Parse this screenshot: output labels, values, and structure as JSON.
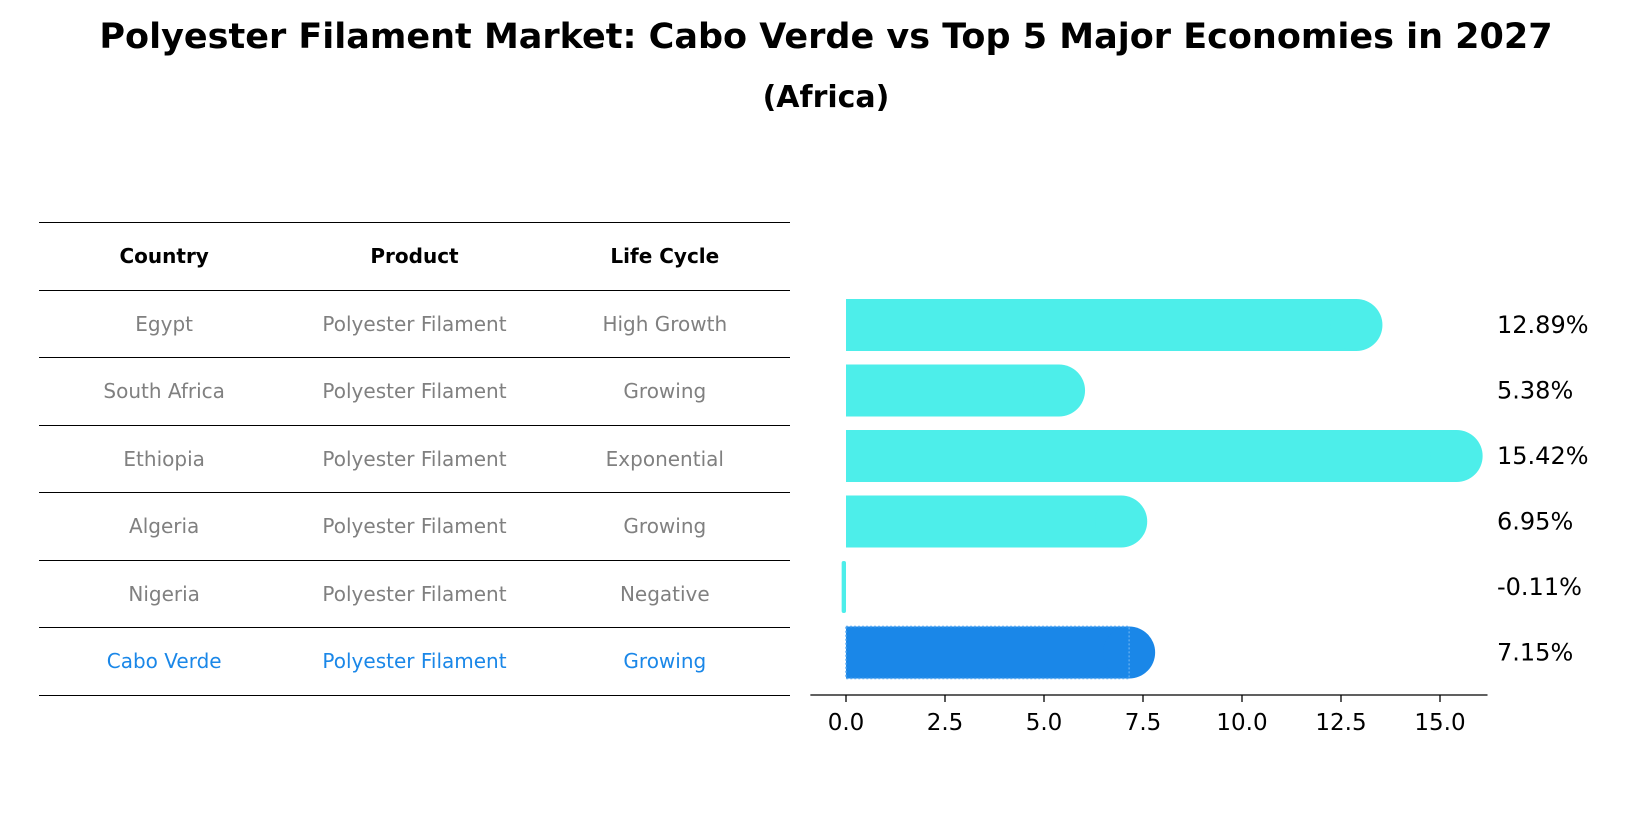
{
  "title": "Polyester Filament Market: Cabo Verde vs Top 5 Major Economies in 2027",
  "subtitle": "(Africa)",
  "table": {
    "headers": [
      "Country",
      "Product",
      "Life Cycle"
    ],
    "rows": [
      {
        "country": "Egypt",
        "product": "Polyester Filament",
        "life_cycle": "High Growth"
      },
      {
        "country": "South Africa",
        "product": "Polyester Filament",
        "life_cycle": "Growing"
      },
      {
        "country": "Ethiopia",
        "product": "Polyester Filament",
        "life_cycle": "Exponential"
      },
      {
        "country": "Algeria",
        "product": "Polyester Filament",
        "life_cycle": "Growing"
      },
      {
        "country": "Nigeria",
        "product": "Polyester Filament",
        "life_cycle": "Negative"
      },
      {
        "country": "Cabo Verde",
        "product": "Polyester Filament",
        "life_cycle": "Growing"
      }
    ],
    "highlight_color": "#1a87e8",
    "muted_color": "#808080"
  },
  "chart_data": {
    "type": "bar",
    "orientation": "horizontal",
    "categories": [
      "Egypt",
      "South Africa",
      "Ethiopia",
      "Algeria",
      "Nigeria",
      "Cabo Verde"
    ],
    "values": [
      12.89,
      5.38,
      15.42,
      6.95,
      -0.11,
      7.15
    ],
    "value_labels": [
      "12.89%",
      "5.38%",
      "15.42%",
      "6.95%",
      "-0.11%",
      "7.15%"
    ],
    "xlim": [
      -0.9,
      16.2
    ],
    "xticks": [
      0.0,
      2.5,
      5.0,
      7.5,
      10.0,
      12.5,
      15.0
    ],
    "xtick_labels": [
      "0.0",
      "2.5",
      "5.0",
      "7.5",
      "10.0",
      "12.5",
      "15.0"
    ],
    "bar_color": "#4deeea",
    "highlight_color": "#1a87e8",
    "highlight_index": 5,
    "rounded_caps": true,
    "grid": false,
    "legend": "none"
  }
}
